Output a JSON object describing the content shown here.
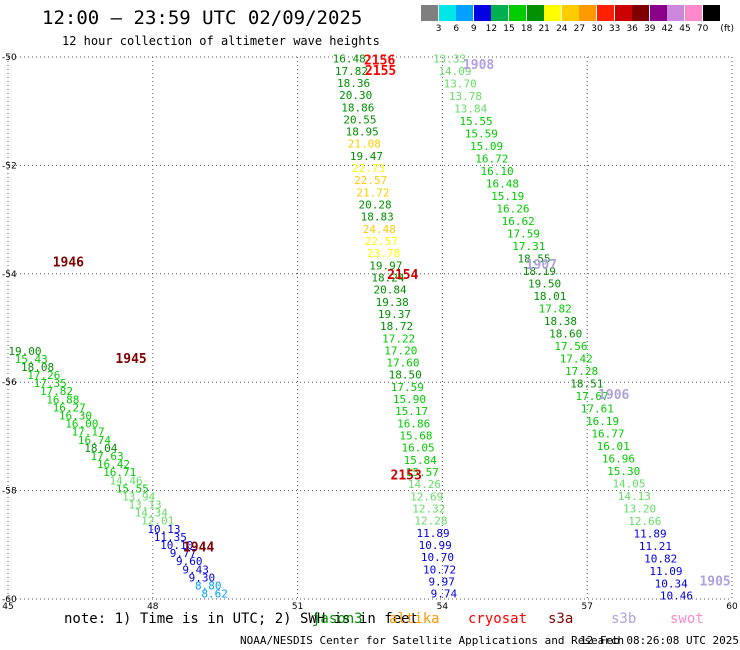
{
  "header": {
    "title": "12:00 — 23:59 UTC 02/09/2025",
    "subtitle": "12 hour collection of altimeter wave heights"
  },
  "colorbar": {
    "unit": "(ft)",
    "ticks": [
      "3",
      "6",
      "9",
      "12",
      "15",
      "18",
      "21",
      "24",
      "27",
      "30",
      "33",
      "36",
      "39",
      "42",
      "45",
      "70"
    ],
    "colors": [
      "#7f7f7f",
      "#00e5e5",
      "#00a0ff",
      "#0000e0",
      "#00b050",
      "#00cc00",
      "#009000",
      "#ffff00",
      "#ffcc00",
      "#ff9900",
      "#ff2000",
      "#cc0000",
      "#800000",
      "#8b008b",
      "#cc88dd",
      "#ff88cc",
      "#000000"
    ]
  },
  "map": {
    "lon_ticks": [
      "45",
      "48",
      "51",
      "54",
      "57",
      "60"
    ],
    "lat_ticks": [
      "-50",
      "-52",
      "-54",
      "-56",
      "-58",
      "-60"
    ],
    "lon_range": [
      45,
      60
    ],
    "lat_range": [
      -50,
      -60
    ]
  },
  "passes": [
    {
      "time": "2156",
      "color": "#ff0000"
    },
    {
      "time": "2155",
      "color": "#ff0000"
    },
    {
      "time": "2154",
      "color": "#cc0000"
    },
    {
      "time": "2153",
      "color": "#cc0000"
    },
    {
      "time": "1908",
      "color": "#b0a0e0"
    },
    {
      "time": "1907",
      "color": "#b0a0e0"
    },
    {
      "time": "1906",
      "color": "#b0a0e0"
    },
    {
      "time": "1905",
      "color": "#b0a0e0"
    },
    {
      "time": "1946",
      "color": "#800000"
    },
    {
      "time": "1945",
      "color": "#800000"
    },
    {
      "time": "1944",
      "color": "#800000"
    }
  ],
  "track_a": [
    {
      "v": "19.00",
      "c": "#009000"
    },
    {
      "v": "15.43",
      "c": "#00cc00"
    },
    {
      "v": "18.08",
      "c": "#009000"
    },
    {
      "v": "17.26",
      "c": "#00cc00"
    },
    {
      "v": "17.35",
      "c": "#00cc00"
    },
    {
      "v": "17.82",
      "c": "#00cc00"
    },
    {
      "v": "16.88",
      "c": "#00cc00"
    },
    {
      "v": "16.27",
      "c": "#00cc00"
    },
    {
      "v": "16.30",
      "c": "#00cc00"
    },
    {
      "v": "16.00",
      "c": "#00cc00"
    },
    {
      "v": "17.17",
      "c": "#00cc00"
    },
    {
      "v": "16.74",
      "c": "#00cc00"
    },
    {
      "v": "18.04",
      "c": "#009000"
    },
    {
      "v": "17.63",
      "c": "#00cc00"
    },
    {
      "v": "16.42",
      "c": "#00cc00"
    },
    {
      "v": "16.71",
      "c": "#00cc00"
    },
    {
      "v": "14.46",
      "c": "#66dd66"
    },
    {
      "v": "15.55",
      "c": "#00cc00"
    },
    {
      "v": "13.94",
      "c": "#66dd66"
    },
    {
      "v": "13.13",
      "c": "#66dd66"
    },
    {
      "v": "14.34",
      "c": "#66dd66"
    },
    {
      "v": "12.01",
      "c": "#66dd66"
    },
    {
      "v": "10.13",
      "c": "#0000e0"
    },
    {
      "v": "11.35",
      "c": "#0000e0"
    },
    {
      "v": "10.10",
      "c": "#0000e0"
    },
    {
      "v": "9.77",
      "c": "#0000e0"
    },
    {
      "v": "9.60",
      "c": "#0000e0"
    },
    {
      "v": "9.43",
      "c": "#0000e0"
    },
    {
      "v": "9.30",
      "c": "#0000e0"
    },
    {
      "v": "8.80",
      "c": "#00a0ff"
    },
    {
      "v": "8.62",
      "c": "#00a0ff"
    }
  ],
  "track_b": [
    {
      "v": "16.48",
      "c": "#009000"
    },
    {
      "v": "17.82",
      "c": "#009000"
    },
    {
      "v": "18.36",
      "c": "#009000"
    },
    {
      "v": "20.30",
      "c": "#009000"
    },
    {
      "v": "18.86",
      "c": "#009000"
    },
    {
      "v": "20.55",
      "c": "#009000"
    },
    {
      "v": "18.95",
      "c": "#009000"
    },
    {
      "v": "21.08",
      "c": "#ffcc00"
    },
    {
      "v": "19.47",
      "c": "#009000"
    },
    {
      "v": "22.73",
      "c": "#ffff00"
    },
    {
      "v": "22.57",
      "c": "#ffcc00"
    },
    {
      "v": "21.72",
      "c": "#ffcc00"
    },
    {
      "v": "20.28",
      "c": "#009000"
    },
    {
      "v": "18.83",
      "c": "#009000"
    },
    {
      "v": "24.48",
      "c": "#ffcc00"
    },
    {
      "v": "22.57",
      "c": "#ffff00"
    },
    {
      "v": "23.78",
      "c": "#ffff00"
    },
    {
      "v": "19.97",
      "c": "#009000"
    },
    {
      "v": "18.24",
      "c": "#009000"
    },
    {
      "v": "20.84",
      "c": "#009000"
    },
    {
      "v": "19.38",
      "c": "#009000"
    },
    {
      "v": "19.37",
      "c": "#009000"
    },
    {
      "v": "18.72",
      "c": "#009000"
    },
    {
      "v": "17.22",
      "c": "#00cc00"
    },
    {
      "v": "17.20",
      "c": "#00cc00"
    },
    {
      "v": "17.60",
      "c": "#00cc00"
    },
    {
      "v": "18.50",
      "c": "#009000"
    },
    {
      "v": "17.59",
      "c": "#00cc00"
    },
    {
      "v": "15.90",
      "c": "#00cc00"
    },
    {
      "v": "15.17",
      "c": "#00cc00"
    },
    {
      "v": "16.86",
      "c": "#00cc00"
    },
    {
      "v": "15.68",
      "c": "#00cc00"
    },
    {
      "v": "16.05",
      "c": "#00cc00"
    },
    {
      "v": "15.84",
      "c": "#00cc00"
    },
    {
      "v": "15.57",
      "c": "#00cc00"
    },
    {
      "v": "14.26",
      "c": "#66dd66"
    },
    {
      "v": "12.69",
      "c": "#66dd66"
    },
    {
      "v": "12.32",
      "c": "#66dd66"
    },
    {
      "v": "12.28",
      "c": "#66dd66"
    },
    {
      "v": "11.89",
      "c": "#0000e0"
    },
    {
      "v": "10.99",
      "c": "#0000e0"
    },
    {
      "v": "10.70",
      "c": "#0000e0"
    },
    {
      "v": "10.72",
      "c": "#0000e0"
    },
    {
      "v": "9.97",
      "c": "#0000e0"
    },
    {
      "v": "9.74",
      "c": "#0000e0"
    }
  ],
  "track_c": [
    {
      "v": "13.33",
      "c": "#66dd66"
    },
    {
      "v": "14.09",
      "c": "#66dd66"
    },
    {
      "v": "13.70",
      "c": "#66dd66"
    },
    {
      "v": "13.78",
      "c": "#66dd66"
    },
    {
      "v": "13.84",
      "c": "#66dd66"
    },
    {
      "v": "15.55",
      "c": "#00cc00"
    },
    {
      "v": "15.59",
      "c": "#00cc00"
    },
    {
      "v": "15.09",
      "c": "#00cc00"
    },
    {
      "v": "16.72",
      "c": "#00cc00"
    },
    {
      "v": "16.10",
      "c": "#00cc00"
    },
    {
      "v": "16.48",
      "c": "#00cc00"
    },
    {
      "v": "15.19",
      "c": "#00cc00"
    },
    {
      "v": "16.26",
      "c": "#00cc00"
    },
    {
      "v": "16.62",
      "c": "#00cc00"
    },
    {
      "v": "17.59",
      "c": "#00cc00"
    },
    {
      "v": "17.31",
      "c": "#00cc00"
    },
    {
      "v": "18.55",
      "c": "#009000"
    },
    {
      "v": "18.19",
      "c": "#009000"
    },
    {
      "v": "19.50",
      "c": "#009000"
    },
    {
      "v": "18.01",
      "c": "#009000"
    },
    {
      "v": "17.82",
      "c": "#00cc00"
    },
    {
      "v": "18.38",
      "c": "#009000"
    },
    {
      "v": "18.60",
      "c": "#009000"
    },
    {
      "v": "17.56",
      "c": "#00cc00"
    },
    {
      "v": "17.42",
      "c": "#00cc00"
    },
    {
      "v": "17.28",
      "c": "#00cc00"
    },
    {
      "v": "18.51",
      "c": "#009000"
    },
    {
      "v": "17.67",
      "c": "#00cc00"
    },
    {
      "v": "17.61",
      "c": "#00cc00"
    },
    {
      "v": "16.19",
      "c": "#00cc00"
    },
    {
      "v": "16.77",
      "c": "#00cc00"
    },
    {
      "v": "16.01",
      "c": "#00cc00"
    },
    {
      "v": "16.96",
      "c": "#00cc00"
    },
    {
      "v": "15.30",
      "c": "#00cc00"
    },
    {
      "v": "14.05",
      "c": "#66dd66"
    },
    {
      "v": "14.13",
      "c": "#66dd66"
    },
    {
      "v": "13.20",
      "c": "#66dd66"
    },
    {
      "v": "12.66",
      "c": "#66dd66"
    },
    {
      "v": "11.89",
      "c": "#0000e0"
    },
    {
      "v": "11.21",
      "c": "#0000e0"
    },
    {
      "v": "10.82",
      "c": "#0000e0"
    },
    {
      "v": "11.09",
      "c": "#0000e0"
    },
    {
      "v": "10.34",
      "c": "#0000e0"
    },
    {
      "v": "10.46",
      "c": "#0000e0"
    }
  ],
  "footer": {
    "note": "note: 1) Time is in UTC; 2) SWH is in feet",
    "satellites": [
      {
        "name": "jason3",
        "color": "#009000"
      },
      {
        "name": "altika",
        "color": "#ff9900"
      },
      {
        "name": "cryosat",
        "color": "#ff0000"
      },
      {
        "name": "s3a",
        "color": "#800000"
      },
      {
        "name": "s3b",
        "color": "#b0a0e0"
      },
      {
        "name": "swot",
        "color": "#ff88cc"
      }
    ],
    "credit": "NOAA/NESDIS Center for Satellite Applications and Research",
    "timestamp": "12 Feb 08:26:08 UTC 2025"
  }
}
